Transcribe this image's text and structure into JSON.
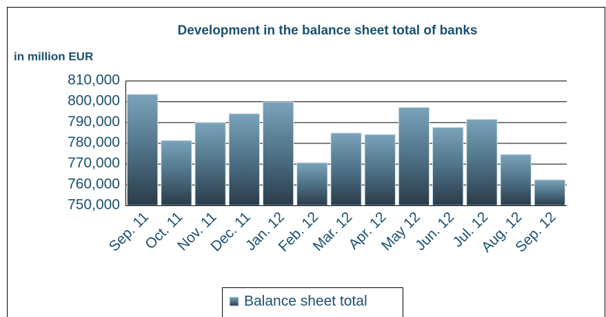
{
  "chart_data": {
    "type": "bar",
    "title": "Development in the balance sheet total of banks",
    "y_label": "in million EUR",
    "categories": [
      "Sep. 11",
      "Oct. 11",
      "Nov. 11",
      "Dec. 11",
      "Jan. 12",
      "Feb. 12",
      "Mar. 12",
      "Apr. 12",
      "May 12",
      "Jun. 12",
      "Jul. 12",
      "Aug. 12",
      "Sep. 12"
    ],
    "series": [
      {
        "name": "Balance sheet total",
        "color": "#4f7287",
        "values": [
          803400,
          781200,
          789800,
          794100,
          799700,
          770500,
          784800,
          784100,
          797100,
          787500,
          791400,
          774500,
          762300
        ]
      }
    ],
    "ylim": [
      750000,
      810000
    ],
    "yticks": [
      {
        "value": 750000,
        "label": "750,000"
      },
      {
        "value": 760000,
        "label": "760,000"
      },
      {
        "value": 770000,
        "label": "770,000"
      },
      {
        "value": 780000,
        "label": "780,000"
      },
      {
        "value": 790000,
        "label": "790,000"
      },
      {
        "value": 800000,
        "label": "800,000"
      },
      {
        "value": 810000,
        "label": "810,000"
      }
    ],
    "grid": true,
    "legend": "bottom"
  }
}
